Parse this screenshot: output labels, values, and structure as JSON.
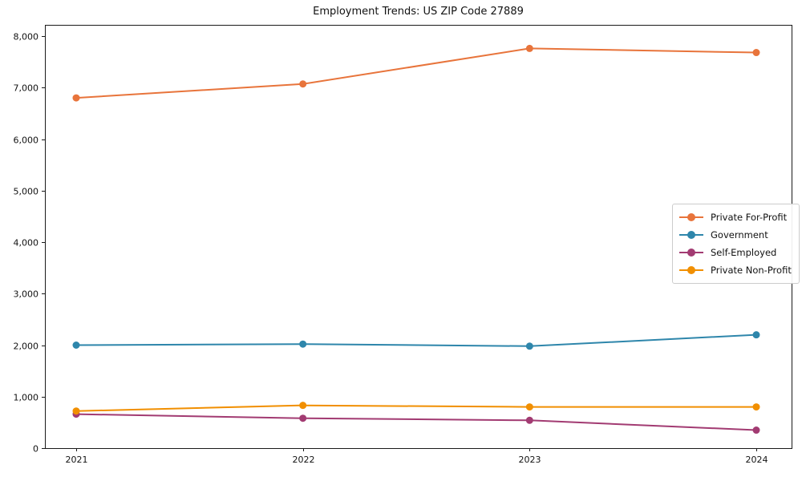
{
  "title": "Employment Trends: US ZIP Code 27889",
  "chart_data": {
    "type": "line",
    "title": "Employment Trends: US ZIP Code 27889",
    "xlabel": "",
    "ylabel": "",
    "x": [
      2021,
      2022,
      2023,
      2024
    ],
    "xtick_labels": [
      "2021",
      "2022",
      "2023",
      "2024"
    ],
    "ylim": [
      0,
      8000
    ],
    "ytick_step": 1000,
    "ytick_labels": [
      "0",
      "1,000",
      "2,000",
      "3,000",
      "4,000",
      "5,000",
      "6,000",
      "7,000",
      "8,000"
    ],
    "grid": false,
    "legend_position": "center right",
    "series": [
      {
        "name": "Private For-Profit",
        "color": "#E8743B",
        "values": [
          6800,
          7070,
          7760,
          7680
        ]
      },
      {
        "name": "Government",
        "color": "#2E86AB",
        "values": [
          2000,
          2020,
          1980,
          2200
        ]
      },
      {
        "name": "Self-Employed",
        "color": "#A23B72",
        "values": [
          660,
          580,
          540,
          350
        ]
      },
      {
        "name": "Private Non-Profit",
        "color": "#F18F01",
        "values": [
          720,
          830,
          800,
          800
        ]
      }
    ],
    "text_color": "#111111",
    "axis_color": "#1a1a1a",
    "background_color": "#ffffff"
  }
}
